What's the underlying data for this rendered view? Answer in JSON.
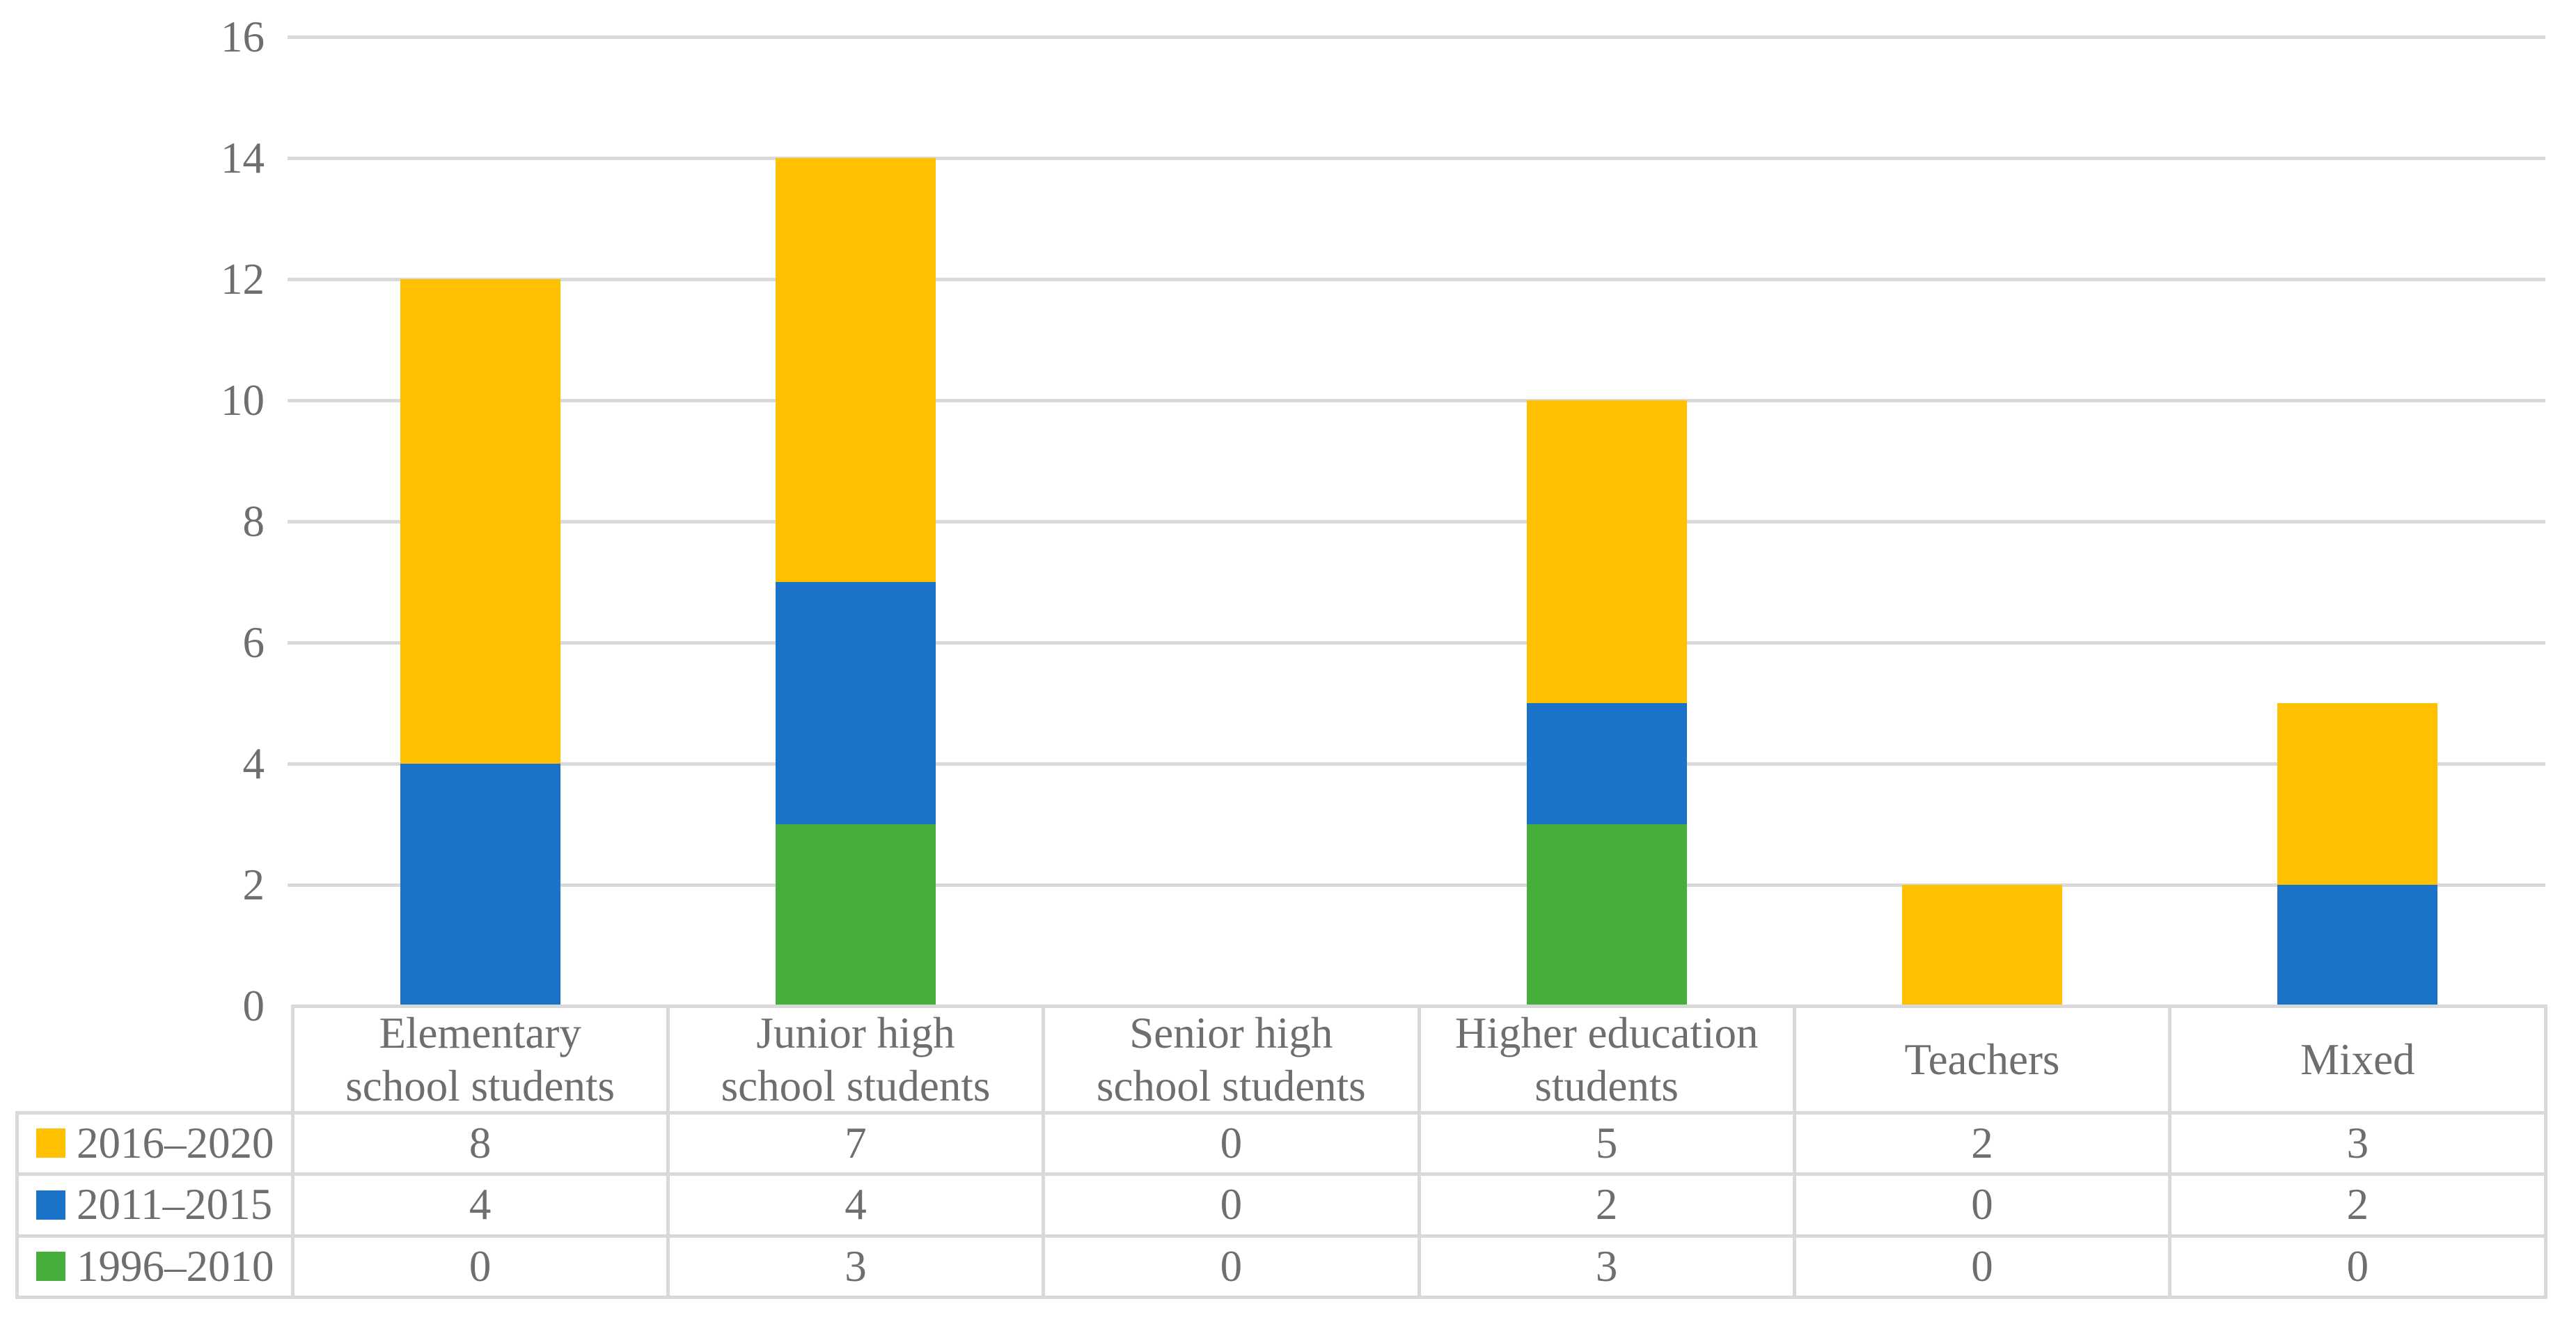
{
  "chart_data": {
    "type": "bar",
    "stacked": true,
    "title": "",
    "xlabel": "",
    "ylabel": "",
    "categories": [
      "Elementary school students",
      "Junior high school students",
      "Senior high school students",
      "Higher education students",
      "Teachers",
      "Mixed"
    ],
    "categories_display_lines": [
      [
        "Elementary",
        "school students"
      ],
      [
        "Junior high",
        "school students"
      ],
      [
        "Senior high",
        "school students"
      ],
      [
        "Higher education",
        "students"
      ],
      [
        "Teachers"
      ],
      [
        "Mixed"
      ]
    ],
    "series": [
      {
        "name": "2016–2020",
        "color": "#FFC000",
        "values": [
          8,
          7,
          0,
          5,
          2,
          3
        ]
      },
      {
        "name": "2011–2015",
        "color": "#1A73C8",
        "values": [
          4,
          4,
          0,
          2,
          0,
          2
        ]
      },
      {
        "name": "1996–2010",
        "color": "#46AE3B",
        "values": [
          0,
          3,
          0,
          3,
          0,
          0
        ]
      }
    ],
    "stack_order_bottom_to_top": [
      "1996–2010",
      "2011–2015",
      "2016–2020"
    ],
    "y_axis": {
      "min": 0,
      "max": 16,
      "step": 2,
      "tick_labels": [
        "0",
        "2",
        "4",
        "6",
        "8",
        "10",
        "12",
        "14",
        "16"
      ]
    },
    "grid": true,
    "legend_position": "table-left-column"
  },
  "colors": {
    "series_2016_2020": "#FFC000",
    "series_2011_2015": "#1A73C8",
    "series_1996_2010": "#46AE3B",
    "gridline": "#D9D9D9",
    "table_border": "#D9D9D9",
    "text": "#6E6E6E",
    "background": "#FFFFFF"
  }
}
